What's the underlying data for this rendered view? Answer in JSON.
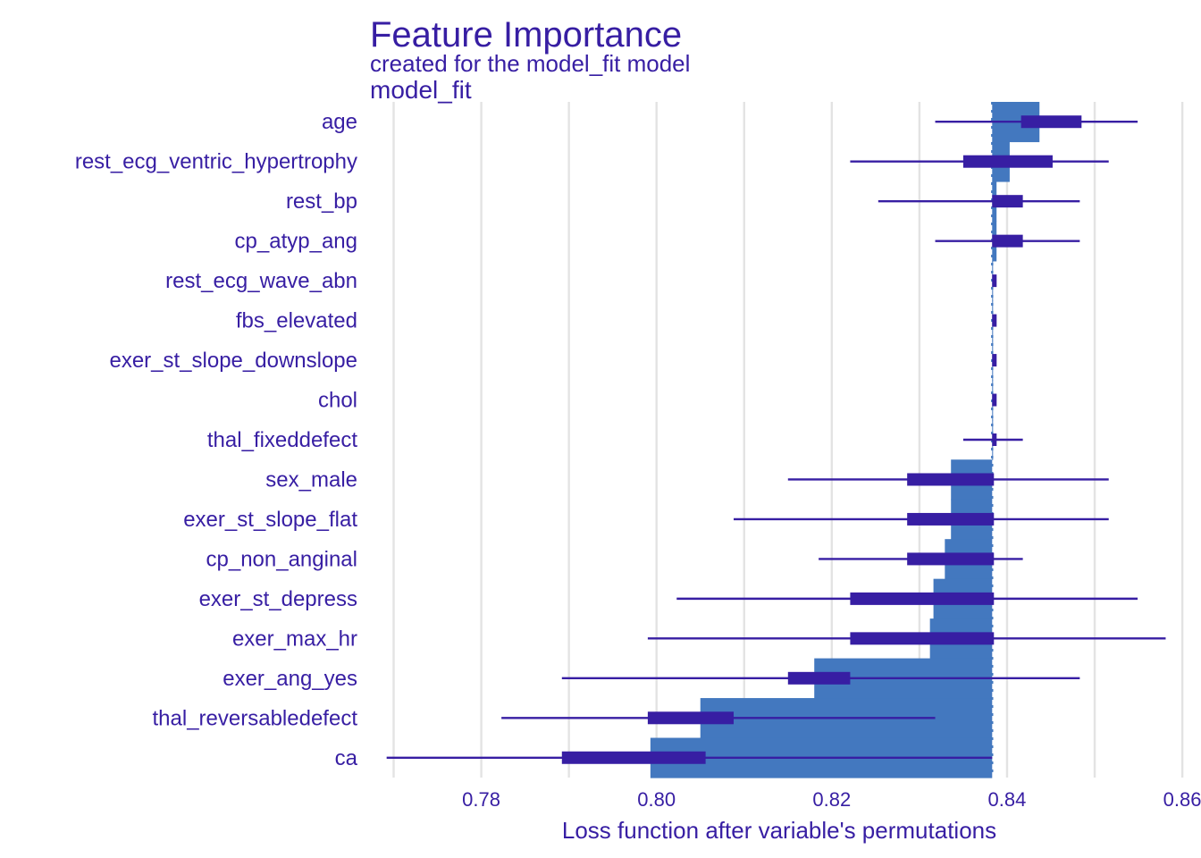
{
  "chart_data": {
    "type": "bar",
    "title": "Feature Importance",
    "subtitle": "created for the model_fit model",
    "panel_label": "model_fit",
    "xlabel": "Loss function after variable's permutations",
    "ylabel": "",
    "xlim": [
      0.7675,
      0.8605
    ],
    "xticks": [
      0.78,
      0.8,
      0.82,
      0.84,
      0.86
    ],
    "xtick_labels": [
      "0.78",
      "0.80",
      "0.82",
      "0.84",
      "0.86"
    ],
    "baseline": 0.8383,
    "grid": true,
    "legend": "none",
    "colors": {
      "bar": "#4378bf",
      "boxplot": "#371ea3",
      "text": "#371ea3",
      "grid": "#e3e3e3"
    },
    "categories": [
      "age",
      "rest_ecg_ventric_hypertrophy",
      "rest_bp",
      "cp_atyp_ang",
      "rest_ecg_wave_abn",
      "fbs_elevated",
      "exer_st_slope_downslope",
      "chol",
      "thal_fixeddefect",
      "sex_male",
      "exer_st_slope_flat",
      "cp_non_anginal",
      "exer_st_depress",
      "exer_max_hr",
      "exer_ang_yes",
      "thal_reversabledefect",
      "ca"
    ],
    "values": [
      0.8437,
      0.8403,
      0.8388,
      0.8388,
      0.8383,
      0.8383,
      0.8383,
      0.8383,
      0.8383,
      0.8336,
      0.8336,
      0.8329,
      0.8316,
      0.8312,
      0.818,
      0.805,
      0.7993
    ],
    "boxplots": [
      {
        "min": 0.8318,
        "q1": 0.8416,
        "q3": 0.8485,
        "max": 0.8549
      },
      {
        "min": 0.8221,
        "q1": 0.835,
        "q3": 0.8452,
        "max": 0.8516
      },
      {
        "min": 0.8253,
        "q1": 0.8383,
        "q3": 0.8418,
        "max": 0.8483
      },
      {
        "min": 0.8318,
        "q1": 0.8383,
        "q3": 0.8418,
        "max": 0.8483
      },
      {
        "min": 0.8383,
        "q1": 0.8383,
        "q3": 0.8385,
        "max": 0.8385
      },
      {
        "min": 0.8383,
        "q1": 0.8383,
        "q3": 0.8385,
        "max": 0.8385
      },
      {
        "min": 0.8383,
        "q1": 0.8383,
        "q3": 0.8385,
        "max": 0.8385
      },
      {
        "min": 0.8383,
        "q1": 0.8383,
        "q3": 0.8385,
        "max": 0.8385
      },
      {
        "min": 0.835,
        "q1": 0.8383,
        "q3": 0.8385,
        "max": 0.8418
      },
      {
        "min": 0.815,
        "q1": 0.8286,
        "q3": 0.8385,
        "max": 0.8516
      },
      {
        "min": 0.8088,
        "q1": 0.8286,
        "q3": 0.8385,
        "max": 0.8516
      },
      {
        "min": 0.8185,
        "q1": 0.8286,
        "q3": 0.8385,
        "max": 0.8418
      },
      {
        "min": 0.8023,
        "q1": 0.8221,
        "q3": 0.8385,
        "max": 0.8549
      },
      {
        "min": 0.799,
        "q1": 0.8221,
        "q3": 0.8385,
        "max": 0.8581
      },
      {
        "min": 0.7892,
        "q1": 0.815,
        "q3": 0.8221,
        "max": 0.8483
      },
      {
        "min": 0.7823,
        "q1": 0.799,
        "q3": 0.8088,
        "max": 0.8318
      },
      {
        "min": 0.7692,
        "q1": 0.7892,
        "q3": 0.8056,
        "max": 0.8383
      }
    ]
  }
}
